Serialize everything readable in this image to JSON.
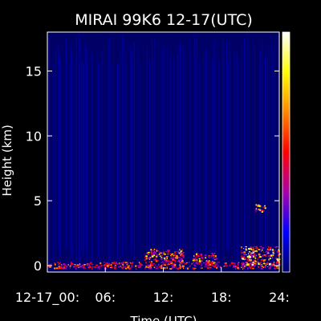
{
  "chart_data": {
    "type": "heatmap",
    "title": "MIRAI 99K6 12-17(UTC)",
    "ylabel": "Height (km)",
    "xlabel": "Time (UTC)",
    "x_ticks": [
      "12-17_00:",
      "06:",
      "12:",
      "18:",
      "24:"
    ],
    "x_tick_values": [
      0,
      6,
      12,
      18,
      24
    ],
    "xlim": [
      0,
      24
    ],
    "y_ticks": [
      "0",
      "5",
      "10",
      "15"
    ],
    "y_tick_values": [
      0,
      5,
      10,
      15
    ],
    "ylim": [
      -0.5,
      18
    ],
    "colorbar": {
      "colors": [
        "#ffffff",
        "#ffff00",
        "#ff8800",
        "#ff0000",
        "#aa00aa",
        "#0000ff",
        "#000066"
      ]
    },
    "background_color": "#000066",
    "noise_color": "#0000ff",
    "features": [
      {
        "name": "surface-echo",
        "x_range": [
          0,
          24
        ],
        "y_range": [
          -0.2,
          0.3
        ],
        "intensity": 0.55
      },
      {
        "name": "low-cloud",
        "x_range": [
          10,
          14
        ],
        "y_range": [
          0.3,
          1.3
        ],
        "intensity": 0.8
      },
      {
        "name": "low-cloud",
        "x_range": [
          15,
          17.5
        ],
        "y_range": [
          0.2,
          1.0
        ],
        "intensity": 0.7
      },
      {
        "name": "low-cloud",
        "x_range": [
          20,
          24
        ],
        "y_range": [
          0.1,
          1.5
        ],
        "intensity": 0.85
      },
      {
        "name": "mid-cloud",
        "x_range": [
          21.5,
          22.5
        ],
        "y_range": [
          4.2,
          4.8
        ],
        "intensity": 0.9
      }
    ]
  }
}
